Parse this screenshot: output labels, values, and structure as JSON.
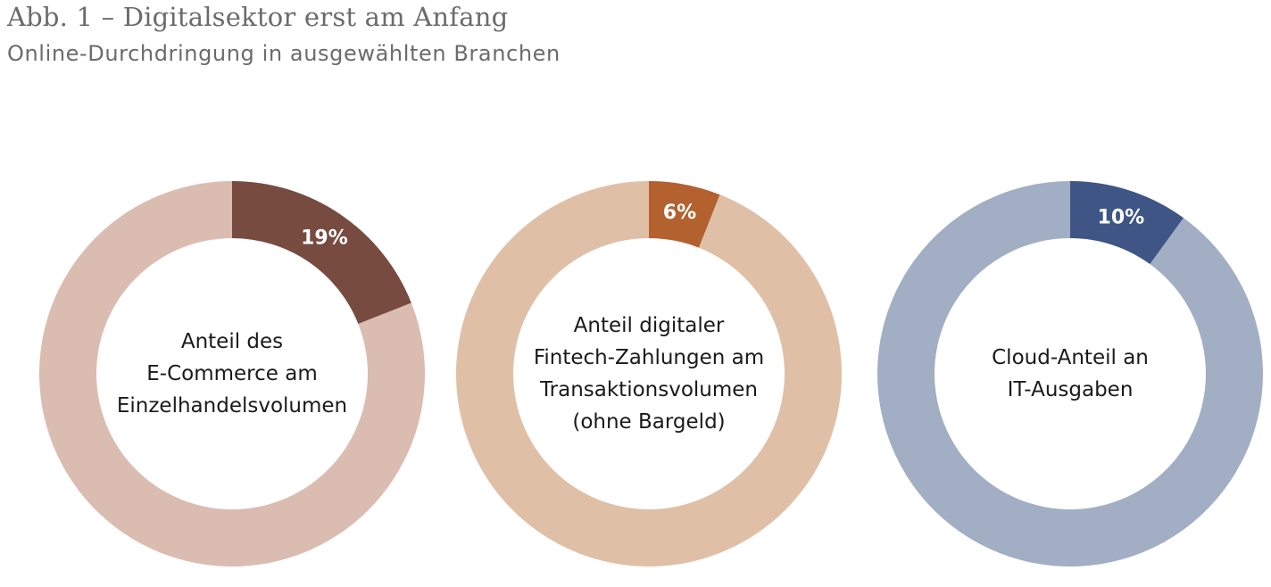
{
  "title": "Abb. 1 – Digitalsektor erst am Anfang",
  "subtitle": "Online-Durchdringung in ausgewählten Branchen",
  "chart_data": [
    {
      "type": "pie",
      "variant": "donut",
      "value": 19,
      "value_label": "19%",
      "center_label": [
        "Anteil des",
        "E-Commerce am",
        "Einzelhandelsvolumen"
      ],
      "colors": {
        "highlight": "#774b40",
        "rest": "#dbbcb1"
      }
    },
    {
      "type": "pie",
      "variant": "donut",
      "value": 6,
      "value_label": "6%",
      "center_label": [
        "Anteil digitaler",
        "Fintech-Zahlungen am",
        "Transaktionsvolumen",
        "(ohne Bargeld)"
      ],
      "colors": {
        "highlight": "#b3612f",
        "rest": "#dfc0a7"
      }
    },
    {
      "type": "pie",
      "variant": "donut",
      "value": 10,
      "value_label": "10%",
      "center_label": [
        "Cloud-Anteil an",
        "IT-Ausgaben"
      ],
      "colors": {
        "highlight": "#3e5586",
        "rest": "#a1aec3"
      }
    }
  ]
}
